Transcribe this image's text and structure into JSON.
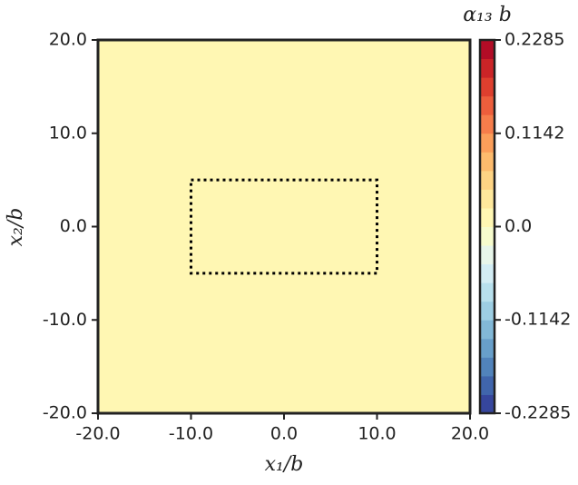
{
  "chart_data": {
    "type": "heatmap",
    "xlabel": "x₁/b",
    "ylabel": "x₂/b",
    "colorbar_label": "α₁₃ b",
    "values": [
      [
        0
      ]
    ],
    "xlim": [
      -20,
      20
    ],
    "ylim": [
      -20,
      20
    ],
    "xticks": [
      {
        "value": -20,
        "label": "-20.0"
      },
      {
        "value": -10,
        "label": "-10.0"
      },
      {
        "value": 0,
        "label": "0.0"
      },
      {
        "value": 10,
        "label": "10.0"
      },
      {
        "value": 20,
        "label": "20.0"
      }
    ],
    "yticks": [
      {
        "value": -20,
        "label": "-20.0"
      },
      {
        "value": -10,
        "label": "-10.0"
      },
      {
        "value": 0,
        "label": "0.0"
      },
      {
        "value": 10,
        "label": "10.0"
      },
      {
        "value": 20,
        "label": "20.0"
      }
    ],
    "clim": [
      -0.2285,
      0.2285
    ],
    "cticks": [
      -0.2285,
      -0.1142,
      {
        "value": 0,
        "label": "0.0"
      },
      0.1142,
      0.2285
    ],
    "colormap": [
      "#313695",
      "#4575b4",
      "#74add1",
      "#abd9e9",
      "#e0f3f8",
      "#ffffbf",
      "#fee090",
      "#fdae61",
      "#f46d43",
      "#d73027",
      "#a50026"
    ],
    "levels": 20,
    "region": {
      "x": [
        -10,
        10
      ],
      "y": [
        -5,
        5
      ]
    }
  }
}
